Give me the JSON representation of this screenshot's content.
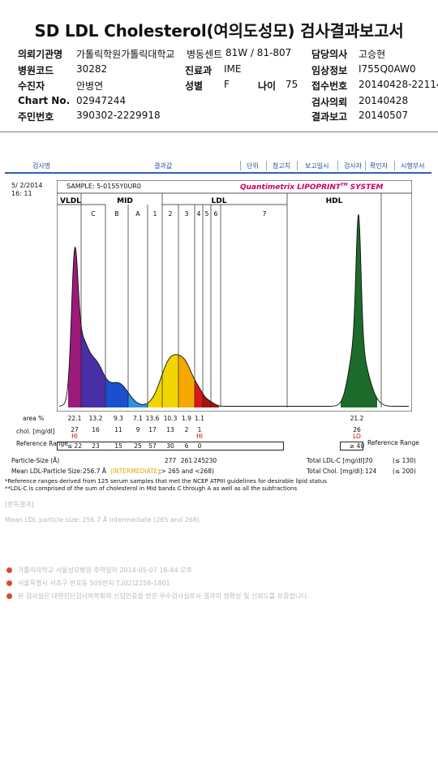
{
  "title": "SD LDL Cholesterol(여의도성모) 검사결과보고서",
  "header": {
    "institution_label": "의뢰기관명",
    "institution_value": "가톨릭학원가톨릭대학교",
    "ward_label": "병동센트",
    "ward_value": "81W / 81-807",
    "doctor_label": "담당의사",
    "doctor_value": "고승현",
    "hospital_code_label": "병원코드",
    "hospital_code_value": "30282",
    "dept_label": "진료과",
    "dept_value": "IME",
    "clinical_label": "임상정보",
    "clinical_value": "I755Q0AW0",
    "patient_label": "수진자",
    "patient_value": "안병연",
    "sex_label": "성별",
    "sex_value": "F",
    "age_label": "나이",
    "age_value": "75",
    "receipt_label": "접수번호",
    "receipt_value": "20140428-22114",
    "chart_label": "Chart No.",
    "chart_value": "02947244",
    "request_label": "검사의뢰",
    "request_value": "20140428",
    "rrn_label": "주민번호",
    "rrn_value": "390302-2229918",
    "report_label": "결과보고",
    "report_value": "20140507"
  },
  "toolbar": [
    "검사명",
    "결과값",
    "단위",
    "참고치",
    "보고일시",
    "검사자",
    "확인자",
    "시행부서"
  ],
  "report": {
    "date": "5/ 2/2014",
    "time": "16: 11",
    "sample": "SAMPLE:   5-0155Y0UR0",
    "brand": "Quantimetrix LIPOPRINT",
    "brand_tm": "TM",
    "brand_suffix": " SYSTEM",
    "regions": [
      "VLDL",
      "MID",
      "LDL",
      "HDL"
    ],
    "bands": [
      "C",
      "B",
      "A",
      "1",
      "2",
      "3",
      "4",
      "5",
      "6",
      "7"
    ],
    "area_label": "area %",
    "area_values": [
      "22.1",
      "13.2",
      "9.3",
      "7.1",
      "13.6",
      "10.3",
      "1.9",
      "1.1",
      "",
      "",
      "21.2"
    ],
    "chol_label": "chol. [mg/dl]",
    "chol_values": [
      "27",
      "16",
      "11",
      "9",
      "17",
      "13",
      "2",
      "1",
      "",
      "",
      "26"
    ],
    "chol_flags": [
      "HI",
      "",
      "",
      "",
      "",
      "",
      "",
      "HI",
      "",
      "",
      "LO"
    ],
    "ref_label": "Reference Range",
    "ref_values": [
      "≤ 22",
      "23",
      "15",
      "25",
      "57",
      "30",
      "6",
      "0",
      "",
      "",
      "≥ 40"
    ],
    "ref_label_right": "Reference Range",
    "particle_label": "Particle-Size (Å)",
    "particle_values": [
      "277",
      "261",
      "245",
      "230"
    ],
    "mean_label": "Mean LDL-Particle Size:",
    "mean_value": "256.7 Å",
    "mean_class": "(INTERMEDIATE)",
    "mean_range": ";> 265 and <268)",
    "total_ldl_label": "Total LDL-C [mg/dl]:",
    "total_ldl_value": "70",
    "total_ldl_ref": "(≤ 130)",
    "total_chol_label": "Total Chol. [mg/dl]:",
    "total_chol_value": "124",
    "total_chol_ref": "(≤ 200)",
    "footnote1": "*Reference ranges derived from 125 serum samples that met the NCEP ATPIII guidelines for desirable lipid status",
    "footnote2": "**LDL-C is comprised of the sum of cholesterol in Mid bands C through A as well as all the subfractions"
  },
  "opinion": {
    "heading": "[판독결과]",
    "text": "Mean LDL particle size: 256.7 Å Intermediate (265 and 268)"
  },
  "footer": {
    "line1": "가톨릭대학교 서울성모병원        추역일자 2014-05-07 16:44 오후",
    "line2": "서울특별시 서초구 반포동 505번지 T.(02)2258-1801",
    "line3": "본 검사실은 대한진단검사의학회의 신임인증을 받은 우수검사실로서 결과의 정확성 및 신뢰도를 보증합니다."
  }
}
